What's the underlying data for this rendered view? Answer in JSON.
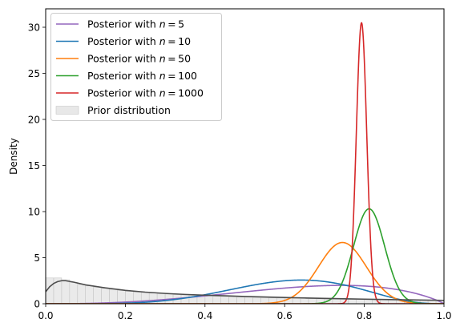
{
  "chart_data": {
    "type": "line",
    "title": "",
    "xlabel": "",
    "ylabel": "Density",
    "xlim": [
      0,
      1
    ],
    "ylim": [
      0,
      32
    ],
    "xticks": [
      0.0,
      0.2,
      0.4,
      0.6,
      0.8,
      1.0
    ],
    "xtick_labels": [
      "0.0",
      "0.2",
      "0.4",
      "0.6",
      "0.8",
      "1.0"
    ],
    "yticks": [
      0,
      5,
      10,
      15,
      20,
      25,
      30
    ],
    "ytick_labels": [
      "0",
      "5",
      "10",
      "15",
      "20",
      "25",
      "30"
    ],
    "grid": false,
    "legend_position": "top-left",
    "prior": {
      "name": "Prior distribution",
      "hist_color": "#d9d9d9",
      "curve_color": "#4d4d4d",
      "bin_width": 0.02,
      "hist_values": [
        2.8,
        2.8,
        2.6,
        2.3,
        2.1,
        1.95,
        1.8,
        1.68,
        1.55,
        1.45,
        1.36,
        1.28,
        1.22,
        1.15,
        1.1,
        1.05,
        1.0,
        0.96,
        0.92,
        0.88,
        0.85,
        0.82,
        0.79,
        0.76,
        0.73,
        0.71,
        0.68,
        0.66,
        0.64,
        0.62,
        0.6,
        0.58,
        0.56,
        0.55,
        0.53,
        0.52,
        0.5,
        0.49,
        0.47,
        0.46,
        0.45,
        0.44,
        0.43,
        0.42,
        0.41,
        0.4,
        0.39,
        0.38,
        0.37,
        0.36
      ],
      "curve_x": [
        0.0,
        0.01,
        0.02,
        0.03,
        0.04,
        0.05,
        0.07,
        0.1,
        0.15,
        0.2,
        0.25,
        0.3,
        0.35,
        0.4,
        0.45,
        0.5,
        0.55,
        0.6,
        0.65,
        0.7,
        0.75,
        0.8,
        0.85,
        0.9,
        0.95,
        1.0
      ],
      "curve_y": [
        1.3,
        1.85,
        2.2,
        2.4,
        2.5,
        2.5,
        2.35,
        2.05,
        1.72,
        1.45,
        1.26,
        1.12,
        1.01,
        0.93,
        0.86,
        0.79,
        0.73,
        0.68,
        0.63,
        0.58,
        0.54,
        0.5,
        0.46,
        0.43,
        0.4,
        0.37
      ]
    },
    "series": [
      {
        "name": "Posterior with $n = 5$",
        "label_prefix": "Posterior with ",
        "label_n": "5",
        "color": "#9467bd",
        "dist": "beta",
        "a": 3.6,
        "b": 1.9
      },
      {
        "name": "Posterior with $n = 10$",
        "label_prefix": "Posterior with ",
        "label_n": "10",
        "color": "#1f77b4",
        "dist": "beta",
        "a": 6.2,
        "b": 3.9
      },
      {
        "name": "Posterior with $n = 50$",
        "label_prefix": "Posterior with ",
        "label_n": "50",
        "color": "#ff7f0e",
        "dist": "normal",
        "mu": 0.745,
        "sigma": 0.06,
        "peak": 6.65
      },
      {
        "name": "Posterior with $n = 100$",
        "label_prefix": "Posterior with ",
        "label_n": "100",
        "color": "#2ca02c",
        "dist": "normal",
        "mu": 0.812,
        "sigma": 0.039,
        "peak": 10.3
      },
      {
        "name": "Posterior with $n = 1000$",
        "label_prefix": "Posterior with ",
        "label_n": "1000",
        "color": "#d62728",
        "dist": "normal",
        "mu": 0.793,
        "sigma": 0.0131,
        "peak": 30.5
      }
    ]
  }
}
